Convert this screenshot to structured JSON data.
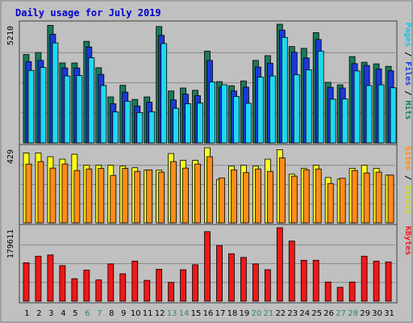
{
  "chart_data": {
    "title": "Daily usage for July 2019",
    "days": [
      "1",
      "2",
      "3",
      "4",
      "5",
      "6",
      "7",
      "8",
      "9",
      "10",
      "11",
      "12",
      "13",
      "14",
      "15",
      "16",
      "17",
      "18",
      "19",
      "20",
      "21",
      "22",
      "23",
      "24",
      "25",
      "26",
      "27",
      "28",
      "29",
      "30",
      "31"
    ],
    "weekend_days": [
      "6",
      "7",
      "13",
      "14",
      "20",
      "21",
      "27",
      "28"
    ],
    "colors": {
      "background": "#c0c0c0",
      "title": "#0000cc",
      "hits": "#1a7a5a",
      "files": "#1a3ad8",
      "pages": "#20d8f0",
      "visits": "#ffff20",
      "sites": "#ff8c1a",
      "kbytes": "#f01818",
      "weekend_label": "#2e8b57",
      "weekday_label": "#000000"
    },
    "panels": [
      {
        "id": "hits_files_pages",
        "type": "bar",
        "max_label": "5210",
        "ymax": 5210,
        "right_label_parts": [
          {
            "text": "Pages",
            "color": "#20c0e0"
          },
          {
            "text": " / ",
            "color": "#000000"
          },
          {
            "text": "Files",
            "color": "#1a3ad8"
          },
          {
            "text": " / ",
            "color": "#000000"
          },
          {
            "text": "Hits",
            "color": "#1a7a5a"
          }
        ],
        "series": [
          {
            "name": "Hits",
            "color": "#1a7a5a",
            "values": [
              3880,
              3970,
              5160,
              3510,
              3510,
              4460,
              3300,
              2020,
              2530,
              1910,
              2020,
              5110,
              2280,
              2410,
              2310,
              4030,
              2690,
              2510,
              2720,
              3620,
              3830,
              5210,
              4230,
              4150,
              4840,
              2660,
              2550,
              3790,
              3540,
              3470,
              3360
            ]
          },
          {
            "name": "Files",
            "color": "#1a3ad8",
            "values": [
              3570,
              3620,
              4770,
              3290,
              3290,
              4210,
              3010,
              1720,
              2230,
              1620,
              1790,
              4720,
              1890,
              2140,
              2070,
              3620,
              2450,
              2280,
              2450,
              3330,
              3500,
              4950,
              3980,
              3730,
              4540,
              2440,
              2410,
              3480,
              3400,
              3250,
              3170
            ]
          },
          {
            "name": "Pages",
            "color": "#20d8f0",
            "values": [
              3180,
              3310,
              4390,
              2940,
              2960,
              3740,
              2520,
              1360,
              1830,
              1330,
              1370,
              4360,
              1520,
              1720,
              1750,
              2680,
              2550,
              2040,
              1740,
              2890,
              2940,
              4630,
              3000,
              3210,
              4030,
              1920,
              1930,
              3160,
              2520,
              2550,
              2420
            ]
          }
        ]
      },
      {
        "id": "visits_sites",
        "type": "bar",
        "max_label": "429",
        "ymax": 429,
        "right_label_parts": [
          {
            "text": "Sites",
            "color": "#ff8c1a"
          },
          {
            "text": " / ",
            "color": "#000000"
          },
          {
            "text": "Visits",
            "color": "#d8d820"
          }
        ],
        "series": [
          {
            "name": "Visits",
            "color": "#ffff20",
            "values": [
              399,
              399,
              378,
              364,
              392,
              329,
              329,
              329,
              324,
              315,
              301,
              301,
              396,
              357,
              357,
              429,
              248,
              324,
              329,
              324,
              364,
              418,
              278,
              311,
              329,
              259,
              250,
              311,
              329,
              311,
              273
            ]
          },
          {
            "name": "Sites",
            "color": "#ff8c1a",
            "values": [
              336,
              350,
              313,
              336,
              299,
              308,
              311,
              271,
              311,
              294,
              303,
              290,
              350,
              313,
              336,
              378,
              257,
              303,
              287,
              308,
              294,
              371,
              267,
              303,
              308,
              225,
              255,
              299,
              285,
              290,
              273
            ]
          }
        ]
      },
      {
        "id": "kbytes",
        "type": "bar",
        "max_label": "179611",
        "ymax": 179611,
        "right_label_parts": [
          {
            "text": "KBytes",
            "color": "#f01818"
          }
        ],
        "series": [
          {
            "name": "KBytes",
            "color": "#f01818",
            "values": [
              94000,
              110000,
              113000,
              87000,
              55000,
              76000,
              52000,
              91000,
              67000,
              98000,
              51000,
              78000,
              46000,
              77000,
              89000,
              170000,
              136000,
              116000,
              107000,
              91000,
              77000,
              179611,
              147000,
              100000,
              100000,
              47000,
              34000,
              47000,
              110000,
              98000,
              96000
            ]
          }
        ]
      }
    ]
  }
}
